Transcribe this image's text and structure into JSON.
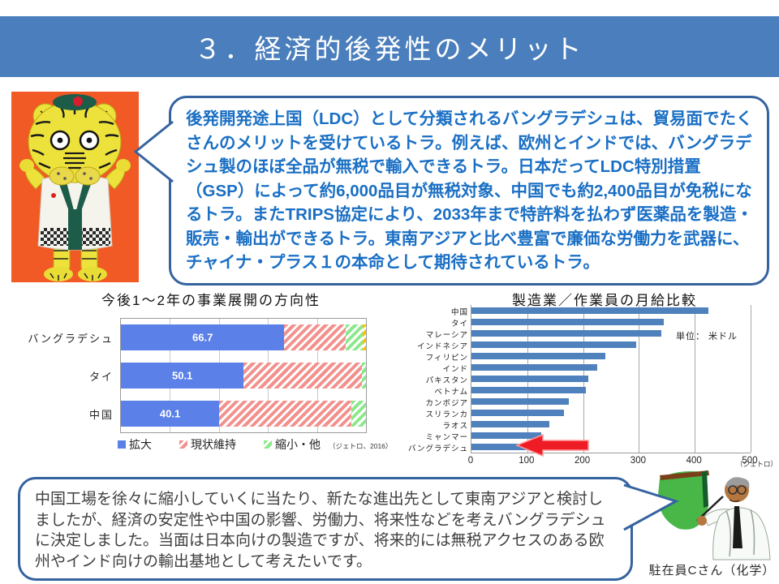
{
  "slide": {
    "title": "３．経済的後発性のメリット"
  },
  "top_bubble": {
    "text": "後発開発途上国（LDC）として分類されるバングラデシュは、貿易面でたくさんのメリットを受けているトラ。例えば、欧州とインドでは、バングラデシュ製のほぼ全品が無税で輸入できるトラ。日本だってLDC特別措置（GSP）によって約6,000品目が無税対象、中国でも約2,400品目が免税になるトラ。またTRIPS協定により、2033年まで特許料を払わず医薬品を製造・販売・輸出ができるトラ。東南アジアと比べ豊富で廉価な労働力を武器に、チャイナ・プラス１の本命として期待されているトラ。"
  },
  "bottom_bubble": {
    "text": "中国工場を徐々に縮小していくに当たり、新たな進出先として東南アジアと検討しましたが、経済の安定性や中国の影響、労働力、将来性などを考えバングラデシュに決定しました。当面は日本向けの製造ですが、将来的には無税アクセスのある欧州やインド向けの輸出基地として考えたいです。",
    "caption": "駐在員Cさん（化学）"
  },
  "chart_data": [
    {
      "type": "bar",
      "orientation": "horizontal-stacked",
      "title": "今後1～2年の事業展開の方向性",
      "categories": [
        "バングラデシュ",
        "タイ",
        "中国"
      ],
      "series": [
        {
          "name": "拡大",
          "pattern": "solid",
          "color": "#5b80e8",
          "values": [
            66.7,
            50.1,
            40.1
          ]
        },
        {
          "name": "現状維持",
          "pattern": "hatch",
          "color": "#f2918d",
          "values": [
            25.0,
            48.2,
            53.9
          ]
        },
        {
          "name": "縮小・他",
          "pattern": "hatch",
          "color": "#8ce88c",
          "values": [
            7.0,
            1.7,
            6.0
          ]
        },
        {
          "name": "",
          "pattern": "hatch",
          "color": "#ffc000",
          "values": [
            1.3,
            0,
            0
          ]
        }
      ],
      "bar_labels": [
        "66.7",
        "50.1",
        "40.1"
      ],
      "xlim": [
        0,
        100
      ],
      "grid_step": 20,
      "legend_position": "bottom",
      "source_note": "（ジェトロ、2016）"
    },
    {
      "type": "bar",
      "orientation": "horizontal",
      "title": "製造業／作業員の月給比較",
      "unit_label": "単位： 米ドル",
      "categories": [
        "中国",
        "タイ",
        "マレーシア",
        "インドネシア",
        "フィリピン",
        "インド",
        "パキスタン",
        "ベトナム",
        "カンボジア",
        "スリランカ",
        "ラオス",
        "ミャンマー",
        "バングラデシュ"
      ],
      "values": [
        425,
        345,
        340,
        295,
        240,
        225,
        210,
        205,
        175,
        165,
        140,
        125,
        110
      ],
      "bar_color": "#4f81bd",
      "xlim": [
        0,
        500
      ],
      "xticks": [
        0,
        100,
        200,
        300,
        400,
        500
      ],
      "annotation": "red-arrow-at-bangladesh",
      "source_note": "（ジェトロ）"
    }
  ]
}
